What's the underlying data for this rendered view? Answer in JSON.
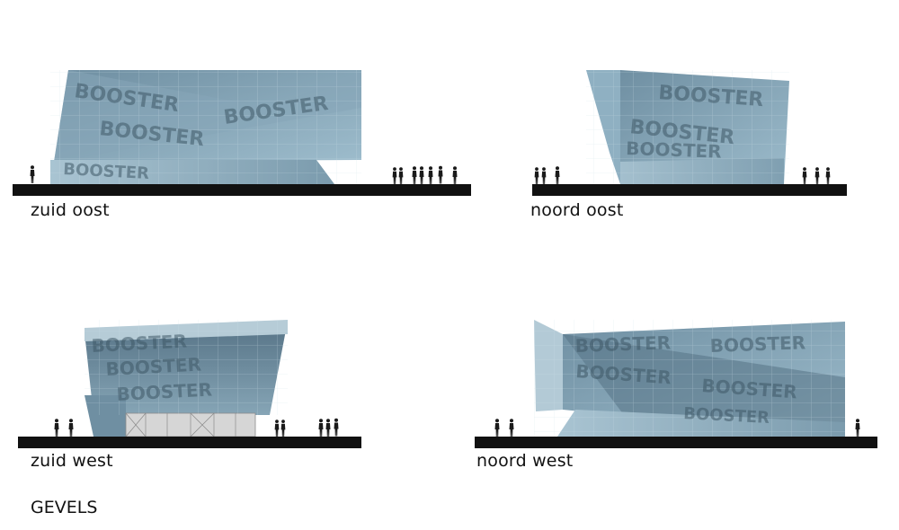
{
  "elevations": [
    {
      "id": "zuid-oost",
      "label": "zuid oost",
      "facade_text": "BOOSTER"
    },
    {
      "id": "noord-oost",
      "label": "noord oost",
      "facade_text": "BOOSTER"
    },
    {
      "id": "zuid-west",
      "label": "zuid west",
      "facade_text": "BOOSTER"
    },
    {
      "id": "noord-west",
      "label": "noord west",
      "facade_text": "BOOSTER"
    }
  ],
  "footer_title": "GEVELS",
  "colors": {
    "ground": "#111111",
    "glass_light": "#9ab6c6",
    "glass_mid": "#7898aa",
    "glass_dark": "#5a7688",
    "people": "#1a1a1a",
    "entrance": "#d6d6d6"
  }
}
